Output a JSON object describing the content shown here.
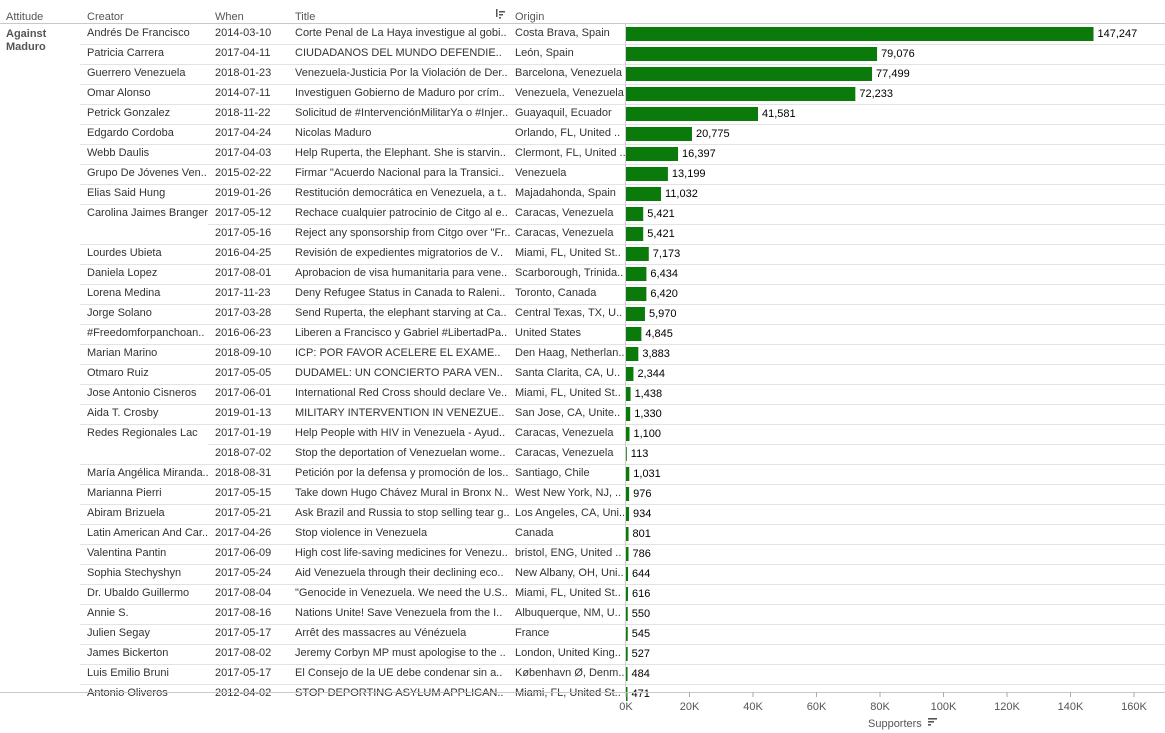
{
  "headers": {
    "attitude": "Attitude",
    "creator": "Creator",
    "when": "When",
    "title": "Title",
    "origin": "Origin"
  },
  "group_label_lines": [
    "Against",
    "Maduro"
  ],
  "axis_title": "Supporters",
  "bar_color": "#0a7a0a",
  "rows": [
    {
      "creator": "Andrés De Francisco",
      "when": "2014-03-10",
      "title": "Corte Penal de La Haya investigue al gobi..",
      "origin": "Costa Brava, Spain"
    },
    {
      "creator": "Patricia Carrera",
      "when": "2017-04-11",
      "title": "CIUDADANOS DEL MUNDO DEFENDIE..",
      "origin": "León, Spain"
    },
    {
      "creator": "Guerrero Venezuela",
      "when": "2018-01-23",
      "title": "Venezuela-Justicia Por la Violación de Der..",
      "origin": "Barcelona, Venezuela"
    },
    {
      "creator": "Omar Alonso",
      "when": "2014-07-11",
      "title": "Investiguen Gobierno de Maduro por crím..",
      "origin": "Venezuela, Venezuela"
    },
    {
      "creator": "Petrick Gonzalez",
      "when": "2018-11-22",
      "title": "Solicitud de #IntervenciónMilitarYa o #Injer..",
      "origin": "Guayaquil, Ecuador"
    },
    {
      "creator": "Edgardo Cordoba",
      "when": "2017-04-24",
      "title": "Nicolas Maduro",
      "origin": "Orlando, FL, United .."
    },
    {
      "creator": "Webb Daulis",
      "when": "2017-04-03",
      "title": "Help Ruperta, the Elephant. She is starvin..",
      "origin": "Clermont, FL, United .."
    },
    {
      "creator": "Grupo De Jóvenes Ven..",
      "when": "2015-02-22",
      "title": "Firmar \"Acuerdo Nacional para la Transici..",
      "origin": "Venezuela"
    },
    {
      "creator": "Elias Said Hung",
      "when": "2019-01-26",
      "title": "Restitución democrática en Venezuela, a t..",
      "origin": "Majadahonda, Spain"
    },
    {
      "creator": "Carolina Jaimes Branger",
      "when": "2017-05-12",
      "title": "Rechace cualquier patrocinio de Citgo al e..",
      "origin": "Caracas, Venezuela"
    },
    {
      "creator": "",
      "when": "2017-05-16",
      "title": "Reject any sponsorship from Citgo over \"Fr..",
      "origin": "Caracas, Venezuela"
    },
    {
      "creator": "Lourdes Ubieta",
      "when": "2016-04-25",
      "title": "Revisión de expedientes migratorios de V..",
      "origin": "Miami, FL, United St.."
    },
    {
      "creator": "Daniela Lopez",
      "when": "2017-08-01",
      "title": "Aprobacion de visa humanitaria para vene..",
      "origin": "Scarborough, Trinida.."
    },
    {
      "creator": "Lorena Medina",
      "when": "2017-11-23",
      "title": "Deny Refugee Status in Canada to Raleni..",
      "origin": "Toronto, Canada"
    },
    {
      "creator": "Jorge Solano",
      "when": "2017-03-28",
      "title": "Send Ruperta, the elephant starving at Ca..",
      "origin": "Central Texas, TX, U.."
    },
    {
      "creator": "#Freedomforpanchoan..",
      "when": "2016-06-23",
      "title": "Liberen a Francisco y Gabriel #LibertadPa..",
      "origin": "United States"
    },
    {
      "creator": "Marian Marino",
      "when": "2018-09-10",
      "title": "ICP: POR FAVOR ACELERE EL EXAME..",
      "origin": "Den Haag, Netherlan.."
    },
    {
      "creator": "Otmaro Ruiz",
      "when": "2017-05-05",
      "title": "DUDAMEL: UN CONCIERTO PARA VEN..",
      "origin": "Santa Clarita, CA, U.."
    },
    {
      "creator": "Jose Antonio Cisneros",
      "when": "2017-06-01",
      "title": "International Red Cross should declare Ve..",
      "origin": "Miami, FL, United St.."
    },
    {
      "creator": "Aida T. Crosby",
      "when": "2019-01-13",
      "title": "MILITARY INTERVENTION IN VENEZUE..",
      "origin": "San Jose, CA, Unite.."
    },
    {
      "creator": "Redes Regionales Lac",
      "when": "2017-01-19",
      "title": "Help People with HIV in Venezuela - Ayud..",
      "origin": "Caracas, Venezuela"
    },
    {
      "creator": "",
      "when": "2018-07-02",
      "title": "Stop the deportation of Venezuelan wome..",
      "origin": "Caracas, Venezuela"
    },
    {
      "creator": "María Angélica Miranda..",
      "when": "2018-08-31",
      "title": "Petición por la defensa y promoción de los..",
      "origin": "Santiago, Chile"
    },
    {
      "creator": "Marianna Pierri",
      "when": "2017-05-15",
      "title": "Take down Hugo Chávez Mural in Bronx N..",
      "origin": "West New York, NJ, .."
    },
    {
      "creator": "Abiram Brizuela",
      "when": "2017-05-21",
      "title": "Ask Brazil and Russia to stop selling tear g..",
      "origin": "Los Angeles, CA, Uni.."
    },
    {
      "creator": "Latin American And Car..",
      "when": "2017-04-26",
      "title": "Stop violence in Venezuela",
      "origin": "Canada"
    },
    {
      "creator": "Valentina Pantin",
      "when": "2017-06-09",
      "title": "High cost life-saving medicines for Venezu..",
      "origin": "bristol, ENG, United .."
    },
    {
      "creator": "Sophia Stechyshyn",
      "when": "2017-05-24",
      "title": "Aid Venezuela through their declining eco..",
      "origin": "New Albany, OH, Uni.."
    },
    {
      "creator": "Dr. Ubaldo Guillermo",
      "when": "2017-08-04",
      "title": "\"Genocide in Venezuela. We need the U.S..",
      "origin": "Miami, FL, United St.."
    },
    {
      "creator": "Annie S.",
      "when": "2017-08-16",
      "title": "Nations Unite!   Save Venezuela from the I..",
      "origin": "Albuquerque, NM, U.."
    },
    {
      "creator": "Julien Segay",
      "when": "2017-05-17",
      "title": "Arrêt des massacres au Vénézuela",
      "origin": "France"
    },
    {
      "creator": "James Bickerton",
      "when": "2017-08-02",
      "title": "Jeremy Corbyn MP must apologise to the ..",
      "origin": "London, United King.."
    },
    {
      "creator": "Luis Emilio Bruni",
      "when": "2017-05-17",
      "title": "El Consejo de la UE debe condenar sin a..",
      "origin": "København Ø, Denm.."
    },
    {
      "creator": "Antonio Oliveros",
      "when": "2012-04-02",
      "title": "STOP DEPORTING ASYLUM APPLICAN..",
      "origin": "Miami, FL, United St.."
    }
  ],
  "chart_data": {
    "type": "bar",
    "orientation": "horizontal",
    "xlabel": "Supporters",
    "xlim": [
      0,
      160000
    ],
    "tick_labels": [
      "0K",
      "20K",
      "40K",
      "60K",
      "80K",
      "100K",
      "120K",
      "140K",
      "160K"
    ],
    "tick_values": [
      0,
      20000,
      40000,
      60000,
      80000,
      100000,
      120000,
      140000,
      160000
    ],
    "values": [
      147247,
      79076,
      77499,
      72233,
      41581,
      20775,
      16397,
      13199,
      11032,
      5421,
      5421,
      7173,
      6434,
      6420,
      5970,
      4845,
      3883,
      2344,
      1438,
      1330,
      1100,
      113,
      1031,
      976,
      934,
      801,
      786,
      644,
      616,
      550,
      545,
      527,
      484,
      471
    ],
    "value_labels": [
      "147,247",
      "79,076",
      "77,499",
      "72,233",
      "41,581",
      "20,775",
      "16,397",
      "13,199",
      "11,032",
      "5,421",
      "5,421",
      "7,173",
      "6,434",
      "6,420",
      "5,970",
      "4,845",
      "3,883",
      "2,344",
      "1,438",
      "1,330",
      "1,100",
      "113",
      "1,031",
      "976",
      "934",
      "801",
      "786",
      "644",
      "616",
      "550",
      "545",
      "527",
      "484",
      "471"
    ]
  }
}
